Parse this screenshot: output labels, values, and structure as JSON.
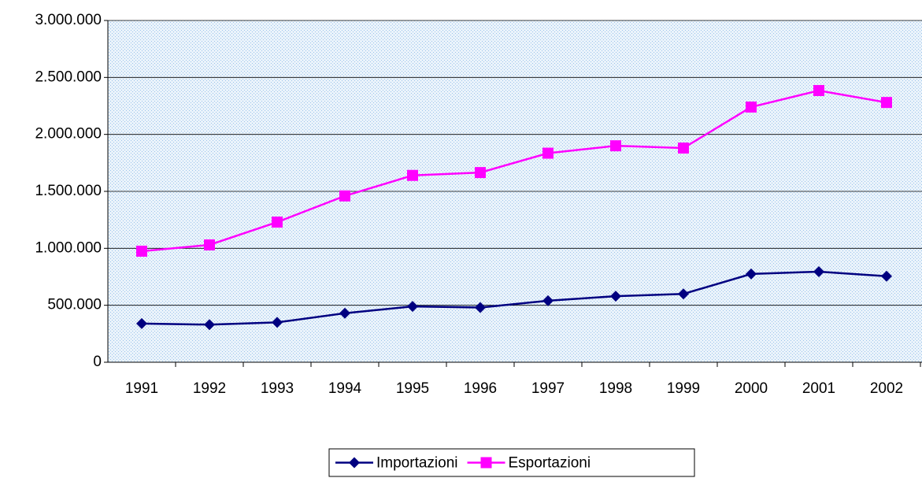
{
  "chart_data": {
    "type": "line",
    "categories": [
      "1991",
      "1992",
      "1993",
      "1994",
      "1995",
      "1996",
      "1997",
      "1998",
      "1999",
      "2000",
      "2001",
      "2002"
    ],
    "series": [
      {
        "name": "Importazioni",
        "color": "#000080",
        "marker": "diamond",
        "values": [
          340000,
          330000,
          350000,
          430000,
          490000,
          480000,
          540000,
          580000,
          600000,
          775000,
          795000,
          755000
        ]
      },
      {
        "name": "Esportazioni",
        "color": "#ff00ff",
        "marker": "square",
        "values": [
          975000,
          1030000,
          1230000,
          1460000,
          1640000,
          1665000,
          1835000,
          1900000,
          1880000,
          2240000,
          2385000,
          2280000
        ]
      }
    ],
    "ylim": [
      0,
      3000000
    ],
    "yticks": [
      0,
      {
        "value": 500000,
        "label": "500.000"
      },
      {
        "value": 1000000,
        "label": "1.000.000"
      },
      {
        "value": 1500000,
        "label": "1.500.000"
      },
      {
        "value": 2000000,
        "label": "2.000.000"
      },
      {
        "value": 2500000,
        "label": "2.500.000"
      },
      {
        "value": 3000000,
        "label": "3.000.000"
      }
    ],
    "grid": true,
    "legend": "bottom"
  }
}
